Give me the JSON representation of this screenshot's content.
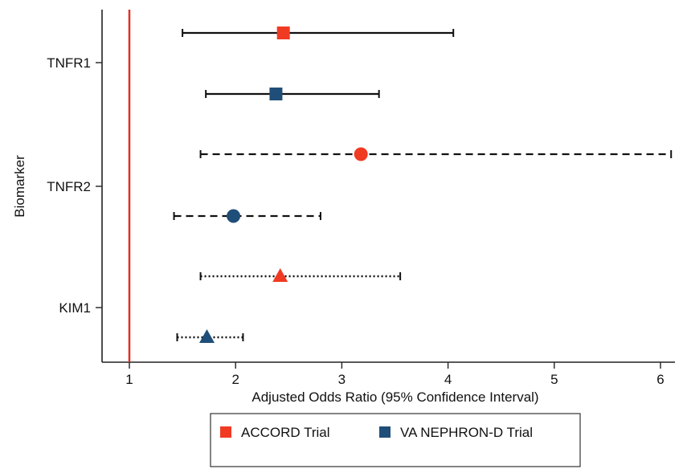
{
  "chart_data": {
    "type": "forest",
    "title": "",
    "xlabel": "Adjusted Odds Ratio (95% Confidence Interval)",
    "ylabel": "Biomarker",
    "xlim": [
      0.75,
      6.25
    ],
    "xticks": [
      1,
      2,
      3,
      4,
      5,
      6
    ],
    "reference_line": {
      "x": 1,
      "color": "#e03024"
    },
    "categories": [
      "TNFR1",
      "TNFR2",
      "KIM1"
    ],
    "series": [
      {
        "name": "ACCORD Trial",
        "color": "#f03a22"
      },
      {
        "name": "VA NEPHRON-D Trial",
        "color": "#1f4e79"
      }
    ],
    "rows": [
      {
        "biomarker": "TNFR1",
        "trial": "ACCORD Trial",
        "marker": "square",
        "line": "solid",
        "or": 2.45,
        "ci_low": 1.5,
        "ci_high": 4.05
      },
      {
        "biomarker": "TNFR1",
        "trial": "VA NEPHRON-D Trial",
        "marker": "square",
        "line": "solid",
        "or": 2.38,
        "ci_low": 1.72,
        "ci_high": 3.35
      },
      {
        "biomarker": "TNFR2",
        "trial": "ACCORD Trial",
        "marker": "circle",
        "line": "dashed",
        "or": 3.18,
        "ci_low": 1.67,
        "ci_high": 6.1
      },
      {
        "biomarker": "TNFR2",
        "trial": "VA NEPHRON-D Trial",
        "marker": "circle",
        "line": "dashed",
        "or": 1.98,
        "ci_low": 1.42,
        "ci_high": 2.8
      },
      {
        "biomarker": "KIM1",
        "trial": "ACCORD Trial",
        "marker": "triangle",
        "line": "dotted",
        "or": 2.42,
        "ci_low": 1.67,
        "ci_high": 3.55
      },
      {
        "biomarker": "KIM1",
        "trial": "VA NEPHRON-D Trial",
        "marker": "triangle",
        "line": "dotted",
        "or": 1.73,
        "ci_low": 1.45,
        "ci_high": 2.07
      }
    ],
    "legend": {
      "placement": "bottom"
    },
    "grid": false
  }
}
